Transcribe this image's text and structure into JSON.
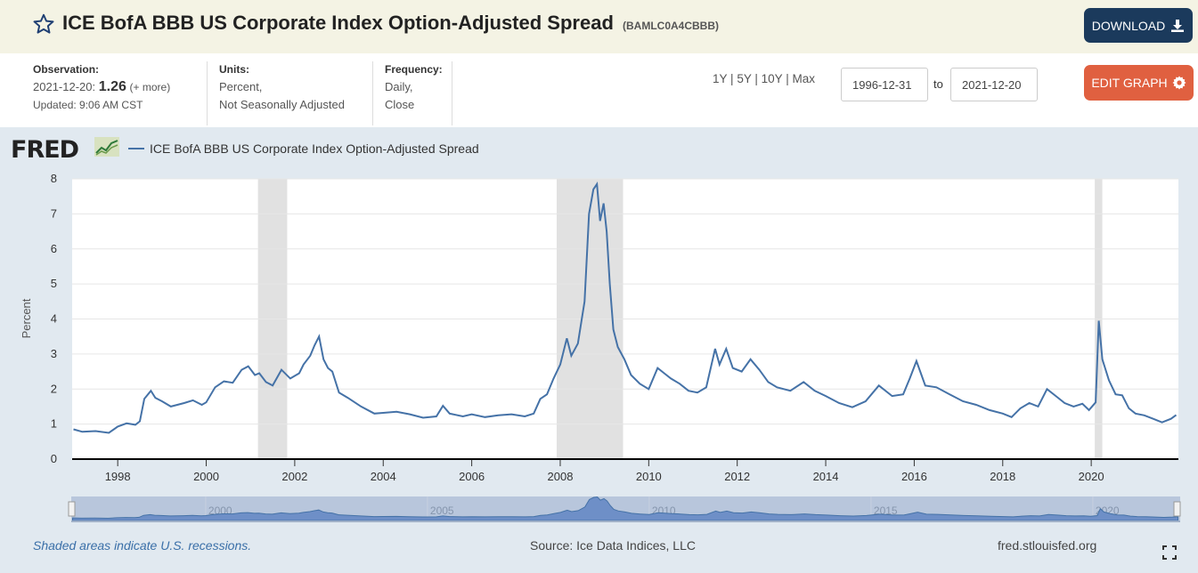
{
  "header": {
    "title": "ICE BofA BBB US Corporate Index Option-Adjusted Spread",
    "series_id": "(BAMLC0A4CBBB)",
    "download_label": "DOWNLOAD",
    "edit_graph_label": "EDIT GRAPH"
  },
  "meta": {
    "observation_label": "Observation:",
    "observation_date": "2021-12-20:",
    "observation_value": "1.26",
    "observation_more": "(+ more)",
    "updated": "Updated: 9:06 AM CST",
    "units_label": "Units:",
    "units_line1": "Percent,",
    "units_line2": "Not Seasonally Adjusted",
    "frequency_label": "Frequency:",
    "frequency_line1": "Daily,",
    "frequency_line2": "Close"
  },
  "range": {
    "options": [
      "1Y",
      "5Y",
      "10Y",
      "Max"
    ],
    "separator": "|",
    "start_date": "1996-12-31",
    "to_label": "to",
    "end_date": "2021-12-20"
  },
  "chart": {
    "logo": "FRED",
    "legend_label": "ICE BofA BBB US Corporate Index Option-Adjusted Spread",
    "y_axis_label": "Percent",
    "footer_note": "Shaded areas indicate U.S. recessions.",
    "source": "Source: Ice Data Indices, LLC",
    "site": "fred.stlouisfed.org",
    "line_color": "#4572a7",
    "recession_color": "#e1e1e1",
    "navigator_ticks": [
      "2000",
      "2005",
      "2010",
      "2015",
      "2020"
    ]
  },
  "chart_data": {
    "type": "line",
    "title": "",
    "xlabel": "",
    "ylabel": "Percent",
    "xlim": [
      1996.97,
      2021.97
    ],
    "ylim": [
      0,
      8
    ],
    "x_ticks": [
      "1998",
      "2000",
      "2002",
      "2004",
      "2006",
      "2008",
      "2010",
      "2012",
      "2014",
      "2016",
      "2018",
      "2020"
    ],
    "y_ticks": [
      "0",
      "1",
      "2",
      "3",
      "4",
      "5",
      "6",
      "7",
      "8"
    ],
    "grid": true,
    "legend": "top-left",
    "recessions": [
      [
        2001.17,
        2001.83
      ],
      [
        2007.92,
        2009.42
      ],
      [
        2020.08,
        2020.25
      ]
    ],
    "series": [
      {
        "name": "ICE BofA BBB US Corporate Index Option-Adjusted Spread",
        "x": [
          1997.0,
          1997.2,
          1997.5,
          1997.8,
          1998.0,
          1998.2,
          1998.4,
          1998.5,
          1998.6,
          1998.75,
          1998.85,
          1999.0,
          1999.2,
          1999.5,
          1999.7,
          1999.9,
          2000.0,
          2000.2,
          2000.4,
          2000.6,
          2000.8,
          2000.95,
          2001.1,
          2001.2,
          2001.35,
          2001.5,
          2001.7,
          2001.9,
          2002.1,
          2002.2,
          2002.35,
          2002.45,
          2002.55,
          2002.65,
          2002.75,
          2002.85,
          2003.0,
          2003.2,
          2003.5,
          2003.8,
          2004.0,
          2004.3,
          2004.6,
          2004.9,
          2005.2,
          2005.35,
          2005.5,
          2005.8,
          2006.0,
          2006.3,
          2006.6,
          2006.9,
          2007.2,
          2007.4,
          2007.55,
          2007.7,
          2007.85,
          2008.0,
          2008.15,
          2008.25,
          2008.4,
          2008.55,
          2008.65,
          2008.75,
          2008.83,
          2008.9,
          2008.98,
          2009.05,
          2009.12,
          2009.2,
          2009.3,
          2009.45,
          2009.6,
          2009.8,
          2010.0,
          2010.2,
          2010.35,
          2010.5,
          2010.7,
          2010.9,
          2011.1,
          2011.3,
          2011.5,
          2011.6,
          2011.75,
          2011.9,
          2012.1,
          2012.3,
          2012.5,
          2012.7,
          2012.9,
          2013.2,
          2013.5,
          2013.75,
          2014.0,
          2014.3,
          2014.6,
          2014.9,
          2015.2,
          2015.5,
          2015.75,
          2015.9,
          2016.05,
          2016.25,
          2016.5,
          2016.8,
          2017.1,
          2017.4,
          2017.7,
          2018.0,
          2018.2,
          2018.4,
          2018.6,
          2018.8,
          2019.0,
          2019.2,
          2019.4,
          2019.6,
          2019.8,
          2019.95,
          2020.1,
          2020.17,
          2020.25,
          2020.4,
          2020.55,
          2020.7,
          2020.85,
          2021.0,
          2021.2,
          2021.4,
          2021.6,
          2021.8,
          2021.92
        ],
        "values": [
          0.85,
          0.78,
          0.8,
          0.75,
          0.93,
          1.02,
          0.98,
          1.08,
          1.72,
          1.95,
          1.75,
          1.65,
          1.5,
          1.6,
          1.68,
          1.55,
          1.62,
          2.05,
          2.22,
          2.18,
          2.55,
          2.65,
          2.4,
          2.45,
          2.2,
          2.1,
          2.55,
          2.3,
          2.45,
          2.7,
          2.95,
          3.25,
          3.5,
          2.85,
          2.6,
          2.5,
          1.9,
          1.75,
          1.5,
          1.3,
          1.32,
          1.35,
          1.28,
          1.18,
          1.22,
          1.52,
          1.3,
          1.22,
          1.28,
          1.2,
          1.25,
          1.28,
          1.22,
          1.3,
          1.72,
          1.85,
          2.3,
          2.7,
          3.45,
          2.95,
          3.3,
          4.5,
          7.0,
          7.7,
          7.85,
          6.8,
          7.3,
          6.5,
          5.0,
          3.7,
          3.2,
          2.85,
          2.4,
          2.15,
          2.0,
          2.6,
          2.45,
          2.3,
          2.15,
          1.95,
          1.9,
          2.05,
          3.15,
          2.7,
          3.15,
          2.6,
          2.5,
          2.85,
          2.55,
          2.2,
          2.05,
          1.95,
          2.2,
          1.95,
          1.8,
          1.6,
          1.48,
          1.65,
          2.1,
          1.8,
          1.85,
          2.3,
          2.8,
          2.1,
          2.05,
          1.85,
          1.65,
          1.55,
          1.4,
          1.3,
          1.2,
          1.45,
          1.6,
          1.5,
          2.0,
          1.8,
          1.6,
          1.5,
          1.58,
          1.4,
          1.62,
          3.95,
          2.85,
          2.25,
          1.85,
          1.82,
          1.45,
          1.3,
          1.25,
          1.15,
          1.05,
          1.15,
          1.26
        ]
      }
    ]
  }
}
